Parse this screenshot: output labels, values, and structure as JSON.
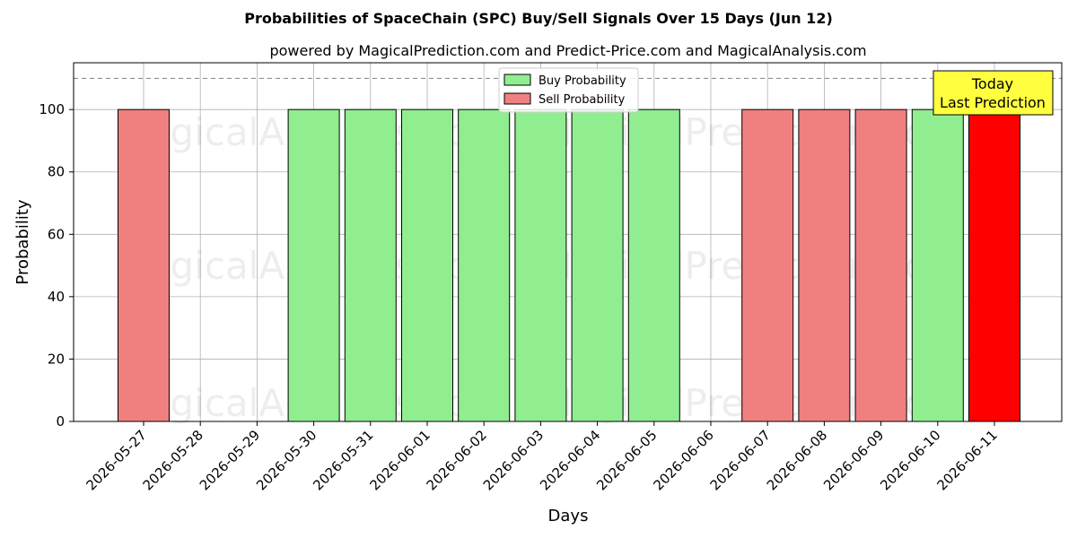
{
  "chart_data": {
    "type": "bar",
    "title": "Probabilities of SpaceChain (SPC) Buy/Sell Signals Over 15 Days (Jun 12)",
    "subtitle": "powered by MagicalPrediction.com and Predict-Price.com and MagicalAnalysis.com",
    "xlabel": "Days",
    "ylabel": "Probability",
    "ylim": [
      0,
      115
    ],
    "yticks": [
      0,
      20,
      40,
      60,
      80,
      100
    ],
    "grid": true,
    "reference_line": 110,
    "categories": [
      "2026-05-27",
      "2026-05-28",
      "2026-05-29",
      "2026-05-30",
      "2026-05-31",
      "2026-06-01",
      "2026-06-02",
      "2026-06-03",
      "2026-06-04",
      "2026-06-05",
      "2026-06-06",
      "2026-06-07",
      "2026-06-08",
      "2026-06-09",
      "2026-06-10",
      "2026-06-11"
    ],
    "bars": [
      {
        "date": "2026-05-27",
        "signal": "sell",
        "value": 100
      },
      {
        "date": "2026-05-30",
        "signal": "buy",
        "value": 100
      },
      {
        "date": "2026-05-31",
        "signal": "buy",
        "value": 100
      },
      {
        "date": "2026-06-01",
        "signal": "buy",
        "value": 100
      },
      {
        "date": "2026-06-02",
        "signal": "buy",
        "value": 100
      },
      {
        "date": "2026-06-03",
        "signal": "buy",
        "value": 100
      },
      {
        "date": "2026-06-04",
        "signal": "buy",
        "value": 100
      },
      {
        "date": "2026-06-05",
        "signal": "buy",
        "value": 100
      },
      {
        "date": "2026-06-07",
        "signal": "sell",
        "value": 100
      },
      {
        "date": "2026-06-08",
        "signal": "sell",
        "value": 100
      },
      {
        "date": "2026-06-09",
        "signal": "sell",
        "value": 100
      },
      {
        "date": "2026-06-10",
        "signal": "buy",
        "value": 100
      },
      {
        "date": "2026-06-11",
        "signal": "sell",
        "value": 100,
        "highlight": true
      }
    ],
    "legend": {
      "placement": "top-center",
      "entries": [
        {
          "key": "buy",
          "label": "Buy Probability"
        },
        {
          "key": "sell",
          "label": "Sell Probability"
        }
      ]
    },
    "annotation": {
      "lines": [
        "Today",
        "Last Prediction"
      ],
      "placement": "top-right"
    },
    "watermarks": [
      "MagicalAnalysis.com",
      "MagicalPrediction.com"
    ],
    "colors": {
      "buy": "#90ee90",
      "sell": "#f08080",
      "highlight": "#ff0000",
      "annotation_bg": "#ffff40",
      "grid": "#b0b0b0",
      "reference_line": "#808080"
    }
  }
}
